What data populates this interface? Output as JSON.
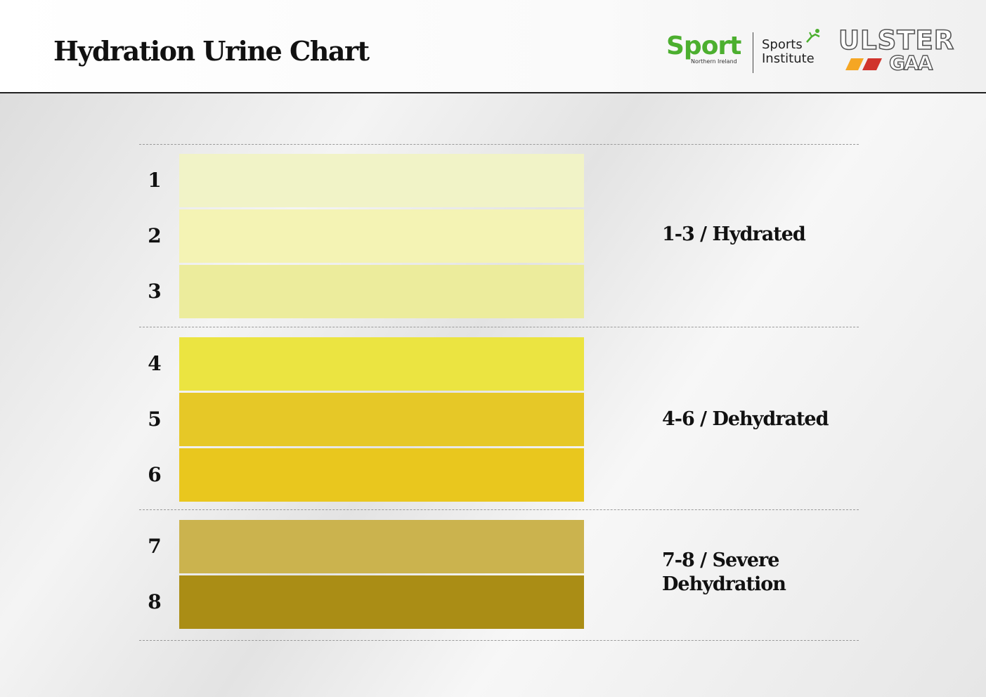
{
  "header": {
    "title": "Hydration Urine Chart",
    "logos": {
      "sport_word": "Sport",
      "sport_sub": "Northern Ireland",
      "institute_line1": "Sports",
      "institute_line2": "Institute",
      "ulster": "ULSTER",
      "gaa": "GAA"
    }
  },
  "levels": [
    {
      "label": "1",
      "color": "#f1f3c7"
    },
    {
      "label": "2",
      "color": "#f4f3b4"
    },
    {
      "label": "3",
      "color": "#ecec9c"
    },
    {
      "label": "4",
      "color": "#ebe441"
    },
    {
      "label": "5",
      "color": "#e6c827"
    },
    {
      "label": "6",
      "color": "#e9c71e"
    },
    {
      "label": "7",
      "color": "#cbb34e"
    },
    {
      "label": "8",
      "color": "#aa8d15"
    }
  ],
  "zones": [
    {
      "range": "1-3",
      "label": "Hydrated"
    },
    {
      "range": "4-6",
      "label": "Dehydrated"
    },
    {
      "range": "7-8",
      "label": "Severe",
      "label2": "Dehydration"
    }
  ],
  "brand_colors": {
    "sport_green": "#4caf2f",
    "gaa_yellow": "#f5a623",
    "gaa_red": "#d0342c"
  }
}
